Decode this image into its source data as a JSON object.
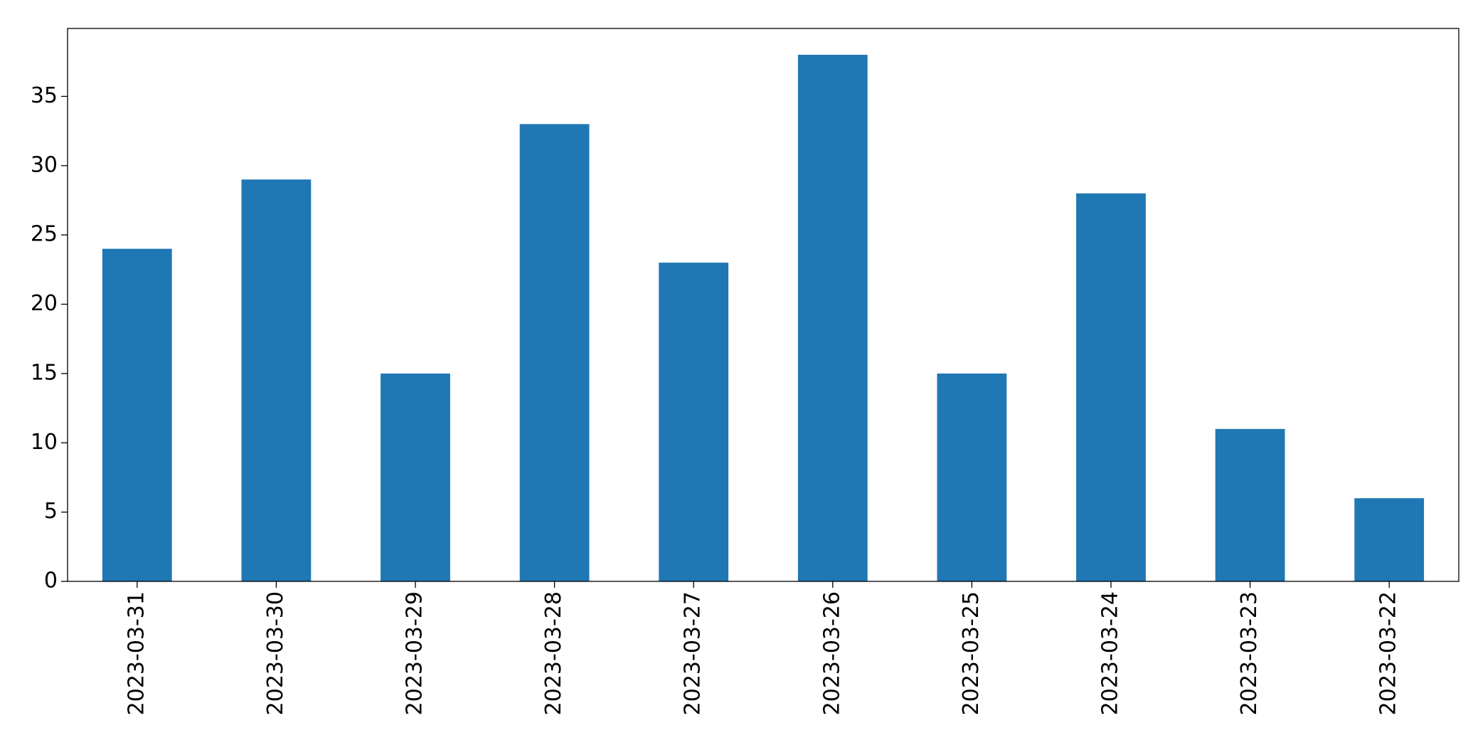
{
  "chart_data": {
    "type": "bar",
    "categories": [
      "2023-03-31",
      "2023-03-30",
      "2023-03-29",
      "2023-03-28",
      "2023-03-27",
      "2023-03-26",
      "2023-03-25",
      "2023-03-24",
      "2023-03-23",
      "2023-03-22"
    ],
    "values": [
      24,
      29,
      15,
      33,
      23,
      38,
      15,
      28,
      11,
      6
    ],
    "color": "#1f77b4",
    "ylim": [
      0,
      39.9
    ],
    "yticks": [
      0,
      5,
      10,
      15,
      20,
      25,
      30,
      35
    ],
    "grid": false
  }
}
